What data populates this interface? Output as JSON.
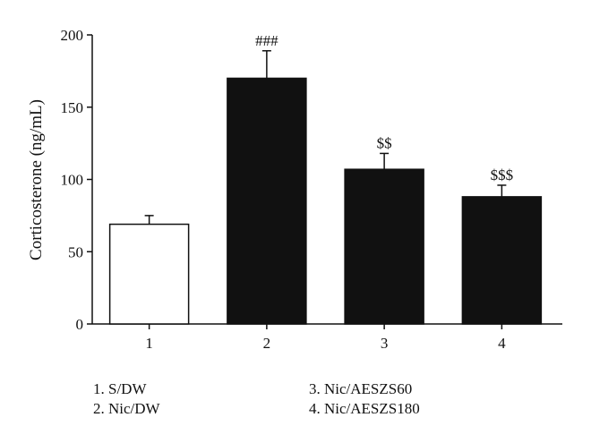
{
  "chart_data": {
    "type": "bar",
    "title": "",
    "xlabel": "",
    "ylabel": "Corticosterone (ng/mL)",
    "ylim": [
      0,
      200
    ],
    "yticks": [
      0,
      50,
      100,
      150,
      200
    ],
    "categories": [
      "1",
      "2",
      "3",
      "4"
    ],
    "values": [
      69,
      170,
      107,
      88
    ],
    "errors": [
      6,
      19,
      11,
      8
    ],
    "bar_colors": [
      "#ffffff",
      "#111111",
      "#111111",
      "#111111"
    ],
    "annotations": [
      "",
      "###",
      "$$",
      "$$$"
    ],
    "grid": false,
    "legend": [
      "1. S/DW",
      "2. Nic/DW",
      "3. Nic/AESZS60",
      "4. Nic/AESZS180"
    ]
  }
}
